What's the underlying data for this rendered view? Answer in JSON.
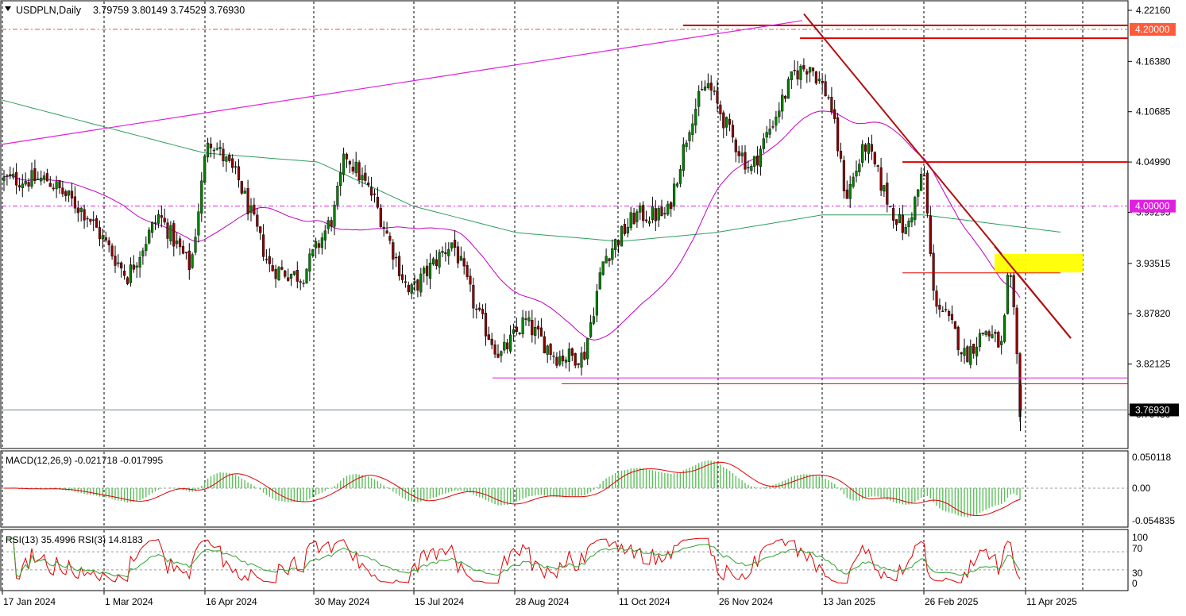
{
  "header": {
    "symbol_label": "USDPLN,Daily",
    "ohlc": "3.79759 3.80149 3.74529 3.76930",
    "menu_icon": "triangle-down-icon"
  },
  "price_axis": {
    "ticks": [
      "4.22160",
      "4.16380",
      "4.10685",
      "4.04990",
      "3.99295",
      "3.93515",
      "3.87820",
      "3.82125",
      "3.76430"
    ],
    "current_price": "3.76930",
    "level_4200": "4.20000",
    "level_4000": "4.00000"
  },
  "time_axis": {
    "labels": [
      "17 Jan 2024",
      "1 Mar 2024",
      "16 Apr 2024",
      "30 May 2024",
      "15 Jul 2024",
      "28 Aug 2024",
      "11 Oct 2024",
      "26 Nov 2024",
      "13 Jan 2025",
      "26 Feb 2025",
      "11 Apr 2025"
    ]
  },
  "macd": {
    "label": "MACD(12,26,9) -0.021718 -0.017995",
    "ticks": [
      "0.050118",
      "0.00",
      "-0.054835"
    ]
  },
  "rsi": {
    "label": "RSI(13) 35.4996  RSI(3) 14.8183",
    "ticks": [
      "100",
      "70",
      "30",
      "0"
    ]
  },
  "colors": {
    "bull": "#008000",
    "bear": "#8b0000",
    "ma_slow": "#2e9e5b",
    "ma_fast": "#c000c0",
    "red_line": "#e00000",
    "trendline": "#b01010",
    "magenta": "#e020e0",
    "zone": "#ffff00",
    "grid": "#000000"
  },
  "chart_data": [
    {
      "type": "candlestick",
      "title": "USDPLN,Daily",
      "last": {
        "open": 3.79759,
        "high": 3.80149,
        "low": 3.74529,
        "close": 3.7693
      },
      "x_labels": [
        "17 Jan 2024",
        "1 Mar 2024",
        "16 Apr 2024",
        "30 May 2024",
        "15 Jul 2024",
        "28 Aug 2024",
        "11 Oct 2024",
        "26 Nov 2024",
        "13 Jan 2025",
        "26 Feb 2025",
        "11 Apr 2025"
      ],
      "ylim": [
        3.735,
        4.235
      ],
      "y_ticks": [
        4.2216,
        4.1638,
        4.10685,
        4.0499,
        3.99295,
        3.93515,
        3.8782,
        3.82125,
        3.7643
      ],
      "horizontal_levels": [
        4.2,
        4.0
      ],
      "close_path": [
        [
          "17 Jan 2024",
          4.03
        ],
        [
          "1 Mar 2024",
          3.95
        ],
        [
          "16 Apr 2024",
          4.07
        ],
        [
          "30 May 2024",
          3.92
        ],
        [
          "15 Jul 2024",
          3.94
        ],
        [
          "28 Aug 2024",
          3.83
        ],
        [
          "11 Oct 2024",
          3.99
        ],
        [
          "26 Nov 2024",
          4.1
        ],
        [
          "13 Jan 2025",
          4.13
        ],
        [
          "26 Feb 2025",
          3.98
        ],
        [
          "11 Apr 2025",
          3.77
        ]
      ],
      "series": [
        {
          "name": "",
          "values_key": "ma_slow"
        },
        {
          "name": "",
          "values_key": "ma_fast"
        }
      ],
      "annotations": [
        "trendline from Dec 2024 high",
        "support near 3.80",
        "resistance zone near 3.94"
      ]
    },
    {
      "type": "macd",
      "title": "MACD(12,26,9) -0.021718 -0.017995",
      "ylim": [
        -0.06,
        0.055
      ],
      "y_ticks": [
        0.050118,
        0.0,
        -0.054835
      ],
      "last_value": -0.021718,
      "last_signal": -0.017995
    },
    {
      "type": "rsi",
      "title": "RSI(13) 35.4996  RSI(3) 14.8183",
      "ylim": [
        0,
        100
      ],
      "y_ticks": [
        100,
        70,
        30,
        0
      ],
      "levels": [
        70,
        30
      ],
      "last_rsi13": 35.4996,
      "last_rsi3": 14.8183
    }
  ]
}
